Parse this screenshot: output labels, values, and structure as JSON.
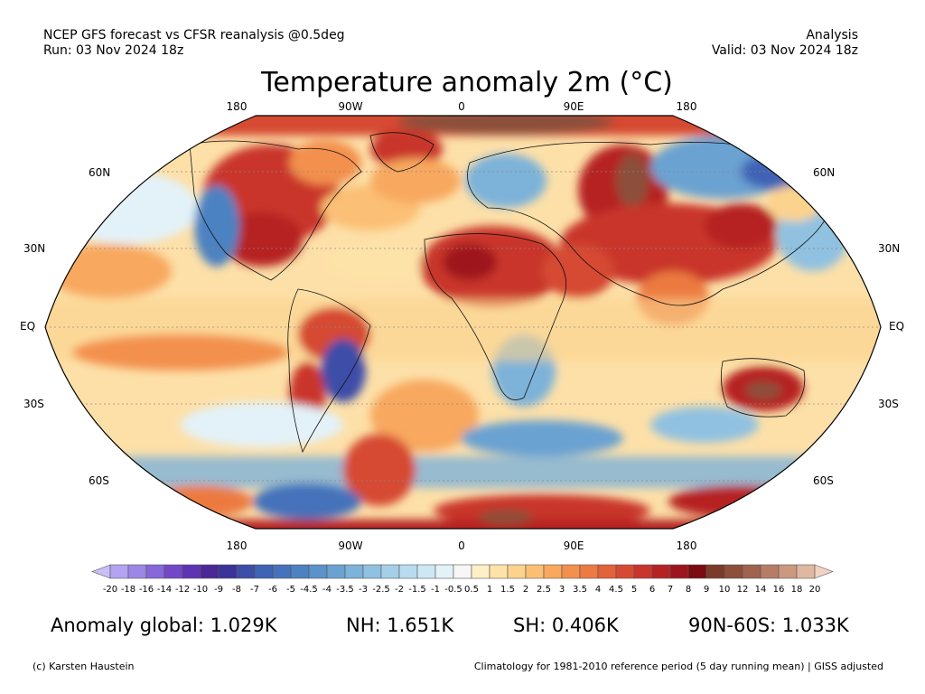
{
  "header": {
    "line1_left": "NCEP GFS forecast vs CFSR reanalysis @0.5deg",
    "line2_left": "Run: 03 Nov 2024 18z",
    "line1_right": "Analysis",
    "line2_right": "Valid: 03 Nov 2024 18z",
    "title": "Temperature anomaly 2m (°C)"
  },
  "map": {
    "projection": "Robinson",
    "lon_labels_top": [
      "180",
      "90W",
      "0",
      "90E",
      "180"
    ],
    "lon_labels_bottom": [
      "180",
      "90W",
      "0",
      "90E",
      "180"
    ],
    "lat_labels_left": [
      "60N",
      "30N",
      "EQ",
      "30S",
      "60S"
    ],
    "lat_labels_right": [
      "60N",
      "30N",
      "EQ",
      "30S",
      "60S"
    ]
  },
  "colorbar": {
    "labels": [
      "-20",
      "-18",
      "-16",
      "-14",
      "-12",
      "-10",
      "-9",
      "-8",
      "-7",
      "-6",
      "-5",
      "-4.5",
      "-4",
      "-3.5",
      "-3",
      "-2.5",
      "-2",
      "-1.5",
      "-1",
      "-0.5",
      "0.5",
      "1",
      "1.5",
      "2",
      "2.5",
      "3",
      "3.5",
      "4",
      "4.5",
      "5",
      "6",
      "7",
      "8",
      "9",
      "10",
      "12",
      "14",
      "16",
      "18",
      "20"
    ],
    "colors": [
      "#c9bff5",
      "#b3a3f0",
      "#9c86e6",
      "#8767d9",
      "#7248c7",
      "#5e34b3",
      "#4a2896",
      "#3a3399",
      "#3d4ea8",
      "#3f63b5",
      "#4572ba",
      "#4c82c1",
      "#5a92c9",
      "#6ba2d1",
      "#7db2d9",
      "#90c1e0",
      "#a4cfe7",
      "#b8dcee",
      "#cde8f4",
      "#e3f2f9",
      "#f7f7f7",
      "#fdf0c6",
      "#fde3a7",
      "#fcd38d",
      "#fbbf74",
      "#f8a85f",
      "#f3904d",
      "#ec7a41",
      "#e2623a",
      "#d64a33",
      "#c9352c",
      "#b62224",
      "#9e141d",
      "#7a0b10",
      "#7a3b2a",
      "#8c4f3a",
      "#a0634d",
      "#b67d66",
      "#cb9980",
      "#e0b7a0",
      "#f1d3c1"
    ]
  },
  "stats": {
    "global": "Anomaly global: 1.029K",
    "nh": "NH: 1.651K",
    "sh": "SH: 0.406K",
    "arctic": "90N-60S: 1.033K"
  },
  "footer": {
    "left": "(c) Karsten Haustein",
    "right": "Climatology for 1981-2010 reference period (5 day running mean) | GISS adjusted"
  }
}
